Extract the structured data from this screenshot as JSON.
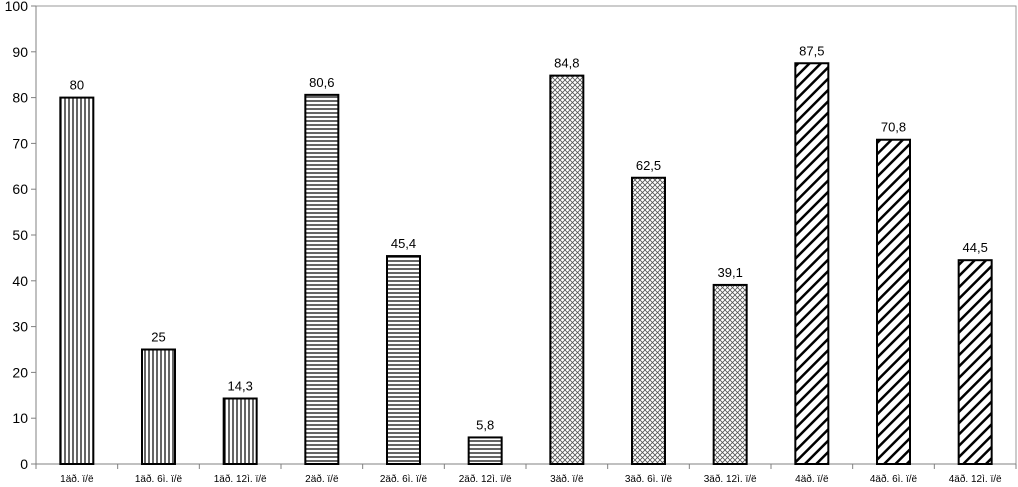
{
  "chart_data": {
    "type": "bar",
    "categories": [
      "1äð. ï/ë",
      "1äð. 6ì. ï/ë",
      "1äð. 12ì. ï/ë",
      "2äð. ï/ë",
      "2äð. 6ì. ï/ë",
      "2äð. 12ì. ï/ë",
      "3äð. ï/ë",
      "3äð. 6ì. ï/ë",
      "3äð. 12ì. ï/ë",
      "4äð. ï/ë",
      "4äð. 6ì. ï/ë",
      "4äð. 12ì. ï/ë"
    ],
    "values": [
      80,
      25,
      14.3,
      80.6,
      45.4,
      5.8,
      84.8,
      62.5,
      39.1,
      87.5,
      70.8,
      44.5
    ],
    "value_labels": [
      "80",
      "25",
      "14,3",
      "80,6",
      "45,4",
      "5,8",
      "84,8",
      "62,5",
      "39,1",
      "87,5",
      "70,8",
      "44,5"
    ],
    "patterns": [
      "vertical",
      "vertical",
      "vertical",
      "horizontal",
      "horizontal",
      "horizontal",
      "crosshatch",
      "crosshatch",
      "crosshatch",
      "diagonal",
      "diagonal",
      "diagonal"
    ],
    "ylim": [
      0,
      100
    ],
    "yticks": [
      "0",
      "10",
      "20",
      "30",
      "40",
      "50",
      "60",
      "70",
      "80",
      "90",
      "100"
    ],
    "title": "",
    "xlabel": "",
    "ylabel": "",
    "grid": false,
    "colors": {
      "bar_stroke": "#000000",
      "bar_fill": "#ffffff",
      "axis": "#808080"
    }
  }
}
